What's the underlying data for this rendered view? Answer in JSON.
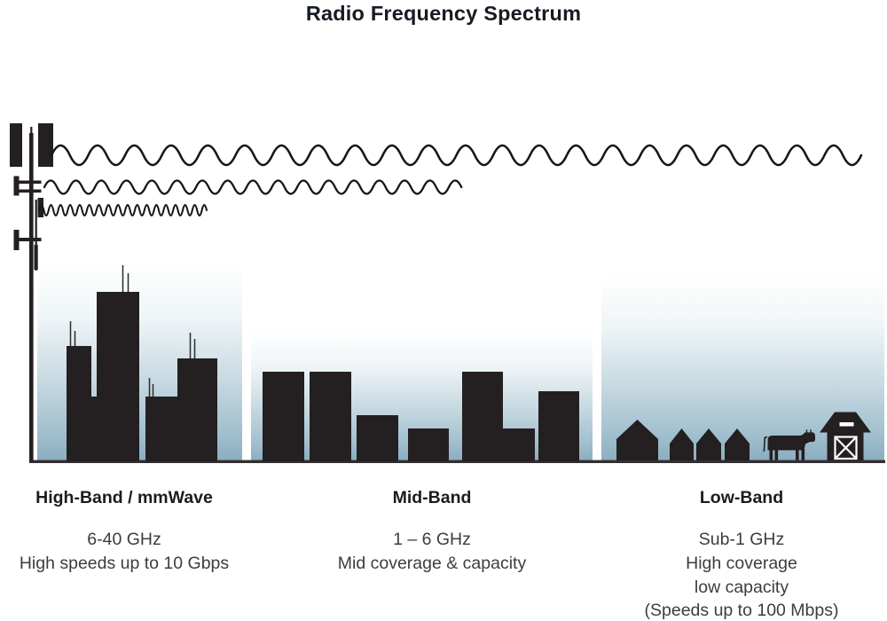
{
  "title": "Radio Frequency Spectrum",
  "sections": [
    {
      "id": "high-band",
      "heading": "High-Band / mmWave",
      "lines": [
        "6-40 GHz",
        "High speeds up to 10 Gbps"
      ]
    },
    {
      "id": "mid-band",
      "heading": "Mid-Band",
      "lines": [
        "1 – 6 GHz",
        "Mid coverage & capacity"
      ]
    },
    {
      "id": "low-band",
      "heading": "Low-Band",
      "lines": [
        "Sub-1 GHz",
        "High coverage",
        "low capacity",
        "(Speeds up to 100 Mbps)"
      ]
    }
  ],
  "icons": {
    "tower": "cell-tower-icon",
    "wave_long": "long-wavelength-wave-icon",
    "wave_medium": "medium-wavelength-wave-icon",
    "wave_short": "short-wavelength-wave-icon",
    "high_band_art": "skyscraper-skyline-icon",
    "mid_band_art": "mid-rise-buildings-icon",
    "low_band_art": "rural-houses-icon",
    "cow": "cow-icon",
    "barn": "barn-icon",
    "ground": "ground-line"
  },
  "colors": {
    "silhouette": "#241f21",
    "sky_top": "#ffffff",
    "sky_bottom": "#8aadc0",
    "heading_text": "#1c1c1c",
    "body_text": "#3d3d3d",
    "title_text": "#161b23"
  }
}
